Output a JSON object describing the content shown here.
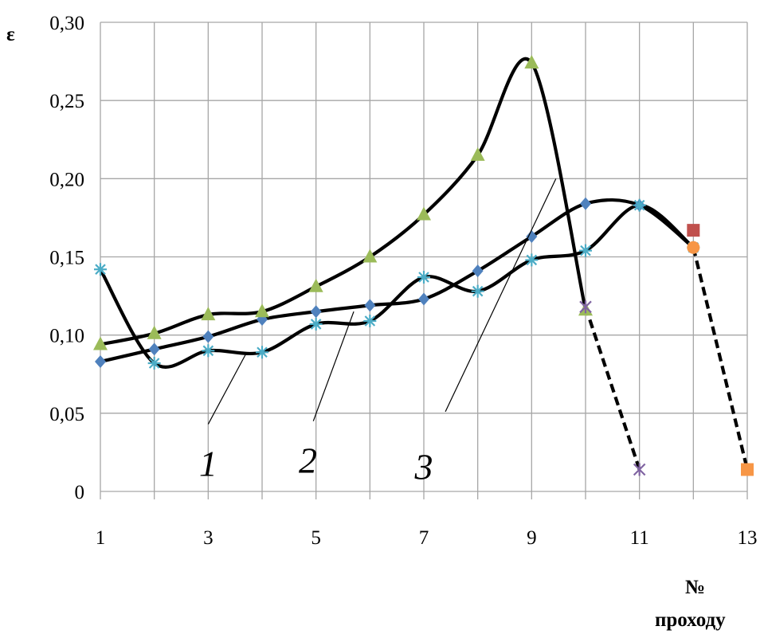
{
  "chart_data": {
    "type": "line",
    "ylabel": "ε",
    "xlabel_line1": "№",
    "xlabel_line2": "проходу",
    "xlim": [
      1,
      13
    ],
    "ylim": [
      0,
      0.3
    ],
    "grid": true,
    "x_ticks": [
      1,
      3,
      5,
      7,
      9,
      11,
      13
    ],
    "x_tick_labels": [
      "1",
      "3",
      "5",
      "7",
      "9",
      "11",
      "13"
    ],
    "y_ticks": [
      0,
      0.05,
      0.1,
      0.15,
      0.2,
      0.25,
      0.3
    ],
    "y_tick_labels": [
      "0",
      "0,05",
      "0,10",
      "0,15",
      "0,20",
      "0,25",
      "0,30"
    ],
    "colors": {
      "line": "#000000",
      "grid": "#a6a6a6",
      "diamond": "#4f81bd",
      "star": "#4bacc6",
      "triangle": "#9bbb59",
      "cross_purple": "#8064a2",
      "square_red": "#c0504d",
      "circle_orange": "#f79646",
      "square_orange": "#f79646"
    },
    "series": [
      {
        "marker": "diamond",
        "x": [
          1,
          2,
          3,
          4,
          5,
          6,
          7,
          8,
          9,
          10,
          11,
          12
        ],
        "values": [
          0.083,
          0.091,
          0.099,
          0.11,
          0.115,
          0.119,
          0.123,
          0.141,
          0.163,
          0.184,
          0.183,
          0.156
        ]
      },
      {
        "marker": "star",
        "x": [
          1,
          2,
          3,
          4,
          5,
          6,
          7,
          8,
          9,
          10,
          11,
          12
        ],
        "values": [
          0.142,
          0.082,
          0.09,
          0.089,
          0.107,
          0.109,
          0.137,
          0.128,
          0.148,
          0.154,
          0.183,
          0.156
        ]
      },
      {
        "marker": "triangle",
        "x": [
          1,
          2,
          3,
          4,
          5,
          6,
          7,
          8,
          9,
          10
        ],
        "values": [
          0.094,
          0.101,
          0.113,
          0.115,
          0.131,
          0.15,
          0.177,
          0.215,
          0.274,
          0.116
        ]
      },
      {
        "marker": "cross",
        "x": [
          10,
          11
        ],
        "values": [
          0.118,
          0.014
        ],
        "dashed": true
      },
      {
        "marker": "circle",
        "x": [
          12,
          13
        ],
        "values": [
          0.156,
          0.014
        ],
        "dashed": true
      },
      {
        "marker": "square",
        "x": [
          12
        ],
        "values": [
          0.167
        ]
      }
    ],
    "curve_labels": [
      {
        "text": "1",
        "label_x": 3.0,
        "label_y": 0.01,
        "to_x": 3.7,
        "to_y": 0.088,
        "from_x": 3.0,
        "from_y": 0.043
      },
      {
        "text": "2",
        "label_x": 4.85,
        "label_y": 0.012,
        "to_x": 5.7,
        "to_y": 0.115,
        "from_x": 4.95,
        "from_y": 0.045
      },
      {
        "text": "3",
        "label_x": 7.0,
        "label_y": 0.008,
        "to_x": 9.45,
        "to_y": 0.2,
        "from_x": 7.4,
        "from_y": 0.051
      }
    ]
  }
}
